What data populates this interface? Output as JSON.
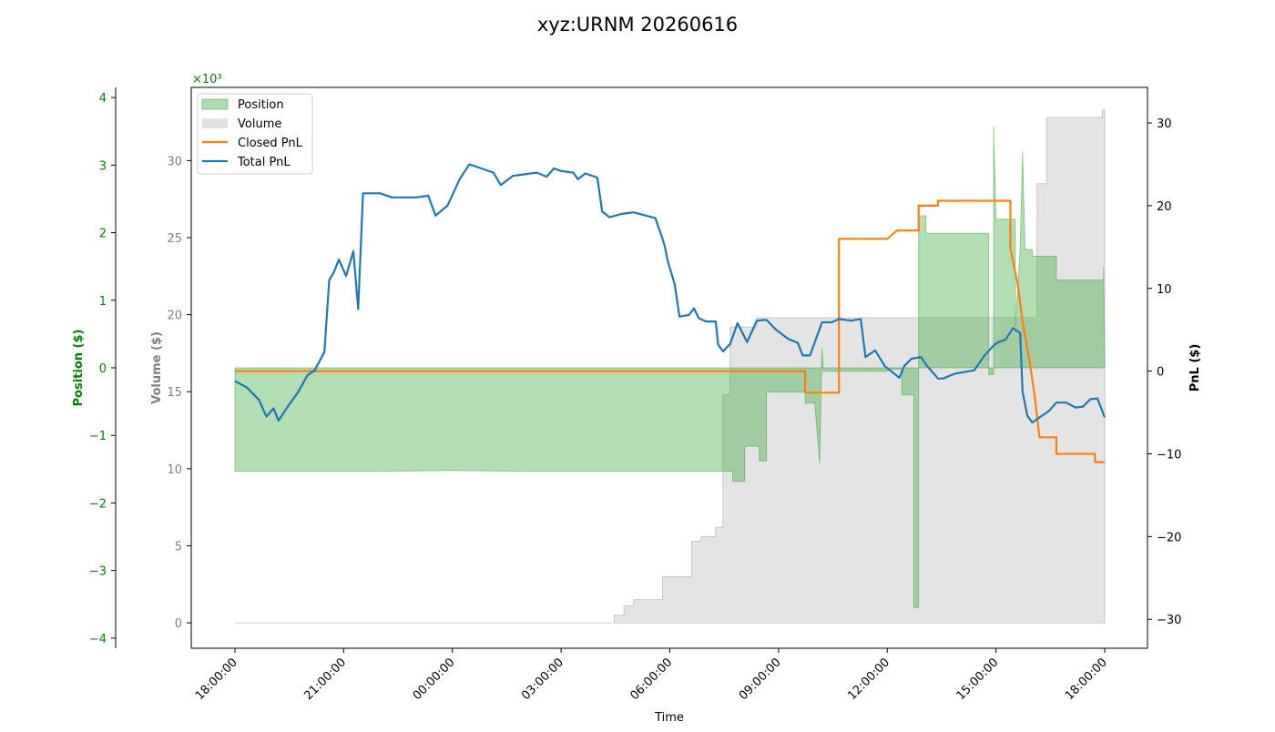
{
  "chart_data": {
    "type": "line",
    "title": "xyz:URNM 20260616",
    "xlabel": "Time",
    "x_ticks": [
      "18:00:00",
      "21:00:00",
      "00:00:00",
      "03:00:00",
      "06:00:00",
      "09:00:00",
      "12:00:00",
      "15:00:00",
      "18:00:00"
    ],
    "position_axis": {
      "label": "Position ($)",
      "multiplier_label": "×10³",
      "ticks": [
        4,
        3,
        2,
        1,
        0,
        -1,
        -2,
        -3,
        -4
      ],
      "tick_labels": [
        "4",
        "3",
        "2",
        "1",
        "0",
        "−1",
        "−2",
        "−3",
        "−4"
      ],
      "ylim": [
        -4.15,
        4.15
      ],
      "color": "#008000"
    },
    "volume_axis": {
      "label": "Volume ($)",
      "ticks": [
        0,
        5,
        10,
        15,
        20,
        25,
        30
      ],
      "tick_labels": [
        "0",
        "5",
        "10",
        "15",
        "20",
        "25",
        "30"
      ],
      "ylim": [
        -1.65,
        34.75
      ],
      "color": "#808080"
    },
    "pnl_axis": {
      "label": "PnL ($)",
      "ticks": [
        30,
        20,
        10,
        0,
        -10,
        -20,
        -30
      ],
      "tick_labels": [
        "30",
        "20",
        "10",
        "0",
        "−10",
        "−20",
        "−30"
      ],
      "ylim": [
        -33.5,
        34.3
      ],
      "color": "#000000"
    },
    "legend": {
      "placement": "top-left",
      "entries": [
        {
          "label": "Position",
          "kind": "area",
          "color": "#2ca02c"
        },
        {
          "label": "Volume",
          "kind": "area",
          "color": "#bfbfbf"
        },
        {
          "label": "Closed PnL",
          "kind": "line",
          "color": "#ff7f0e"
        },
        {
          "label": "Total PnL",
          "kind": "line",
          "color": "#1f77b4"
        }
      ]
    },
    "series": [
      {
        "name": "Position",
        "axis": "position",
        "unit_multiplier": 1000,
        "points": [
          [
            0,
            0
          ],
          [
            0,
            -1.53
          ],
          [
            6,
            -1.53
          ],
          [
            9,
            -1.52
          ],
          [
            12,
            -1.53
          ],
          [
            18,
            -1.53
          ],
          [
            20.6,
            -1.53
          ],
          [
            20.6,
            -1.68
          ],
          [
            21.1,
            -1.68
          ],
          [
            21.1,
            -1.16
          ],
          [
            21.7,
            -1.16
          ],
          [
            21.7,
            -1.38
          ],
          [
            22,
            -1.38
          ],
          [
            22,
            -0.36
          ],
          [
            23.6,
            -0.36
          ],
          [
            23.6,
            -0.52
          ],
          [
            24,
            -0.52
          ],
          [
            24.2,
            -1.41
          ],
          [
            24.3,
            0.3
          ],
          [
            24.35,
            -0.05
          ],
          [
            27,
            -0.05
          ],
          [
            27,
            -0.02
          ],
          [
            27.6,
            -0.02
          ],
          [
            27.6,
            -0.4
          ],
          [
            28.1,
            -0.4
          ],
          [
            28.1,
            -3.55
          ],
          [
            28.3,
            -3.55
          ],
          [
            28.3,
            2.25
          ],
          [
            28.6,
            2.25
          ],
          [
            28.6,
            1.99
          ],
          [
            31.2,
            1.99
          ],
          [
            31.2,
            -0.1
          ],
          [
            31.4,
            -0.1
          ],
          [
            31.4,
            3.58
          ],
          [
            31.5,
            2.2
          ],
          [
            32.3,
            2.2
          ],
          [
            32.3,
            0.6
          ],
          [
            32.5,
            1.75
          ],
          [
            32.6,
            3.2
          ],
          [
            32.7,
            1.75
          ],
          [
            33,
            1.75
          ],
          [
            33,
            1.65
          ],
          [
            34,
            1.65
          ],
          [
            34,
            1.3
          ],
          [
            35.95,
            1.3
          ],
          [
            35.95,
            1.5
          ],
          [
            36,
            0
          ]
        ]
      },
      {
        "name": "Volume",
        "axis": "volume",
        "unit_multiplier": 1000,
        "points": [
          [
            0,
            0
          ],
          [
            15.7,
            0
          ],
          [
            15.7,
            0.5
          ],
          [
            16.1,
            0.5
          ],
          [
            16.1,
            1.1
          ],
          [
            16.5,
            1.1
          ],
          [
            16.5,
            1.5
          ],
          [
            17.7,
            1.5
          ],
          [
            17.7,
            3.0
          ],
          [
            18.9,
            3.0
          ],
          [
            18.9,
            5.3
          ],
          [
            19.3,
            5.3
          ],
          [
            19.3,
            5.6
          ],
          [
            19.9,
            5.6
          ],
          [
            19.9,
            6.2
          ],
          [
            20.2,
            6.2
          ],
          [
            20.2,
            14.8
          ],
          [
            20.5,
            14.8
          ],
          [
            20.5,
            19.2
          ],
          [
            21.6,
            19.2
          ],
          [
            21.6,
            19.8
          ],
          [
            33.2,
            19.8
          ],
          [
            33.2,
            28.5
          ],
          [
            33.6,
            28.5
          ],
          [
            33.6,
            32.8
          ],
          [
            35.9,
            32.8
          ],
          [
            35.9,
            33.3
          ],
          [
            36,
            33.3
          ],
          [
            36,
            0
          ]
        ]
      },
      {
        "name": "Closed PnL",
        "axis": "pnl",
        "points": [
          [
            0,
            0
          ],
          [
            23.6,
            0
          ],
          [
            23.6,
            -2.6
          ],
          [
            25,
            -2.6
          ],
          [
            25,
            16.0
          ],
          [
            27,
            16.0
          ],
          [
            27.4,
            17.0
          ],
          [
            28.3,
            17.0
          ],
          [
            28.3,
            20.0
          ],
          [
            29.1,
            20.0
          ],
          [
            29.1,
            20.6
          ],
          [
            32.1,
            20.6
          ],
          [
            32.1,
            14.8
          ],
          [
            32.4,
            10.5
          ],
          [
            32.6,
            6.0
          ],
          [
            32.9,
            1.0
          ],
          [
            33.1,
            -3.0
          ],
          [
            33.3,
            -8.0
          ],
          [
            34,
            -8.0
          ],
          [
            34,
            -10.0
          ],
          [
            35.6,
            -10.0
          ],
          [
            35.6,
            -11.0
          ],
          [
            36,
            -11.0
          ]
        ]
      },
      {
        "name": "Total PnL",
        "axis": "pnl",
        "points": [
          [
            0,
            -1.2
          ],
          [
            0.5,
            -2.0
          ],
          [
            1,
            -3.5
          ],
          [
            1.3,
            -5.5
          ],
          [
            1.6,
            -4.5
          ],
          [
            1.8,
            -6.0
          ],
          [
            2.2,
            -4.2
          ],
          [
            2.6,
            -2.6
          ],
          [
            3,
            -0.5
          ],
          [
            3.3,
            0.1
          ],
          [
            3.7,
            2.3
          ],
          [
            3.9,
            11.0
          ],
          [
            4.1,
            12.0
          ],
          [
            4.3,
            13.5
          ],
          [
            4.6,
            11.5
          ],
          [
            4.9,
            14.5
          ],
          [
            5.1,
            7.5
          ],
          [
            5.3,
            21.5
          ],
          [
            6,
            21.5
          ],
          [
            6.5,
            21.0
          ],
          [
            7,
            21.0
          ],
          [
            7.5,
            21.0
          ],
          [
            8,
            21.2
          ],
          [
            8.3,
            18.8
          ],
          [
            8.8,
            20.0
          ],
          [
            9.3,
            23.2
          ],
          [
            9.7,
            25.0
          ],
          [
            10.2,
            24.5
          ],
          [
            10.7,
            24.0
          ],
          [
            11,
            22.5
          ],
          [
            11.5,
            23.6
          ],
          [
            12,
            23.8
          ],
          [
            12.5,
            24.0
          ],
          [
            12.9,
            23.5
          ],
          [
            13.2,
            24.5
          ],
          [
            13.5,
            24.2
          ],
          [
            14,
            24.0
          ],
          [
            14.2,
            23.2
          ],
          [
            14.5,
            23.9
          ],
          [
            15,
            23.4
          ],
          [
            15.2,
            19.3
          ],
          [
            15.5,
            18.6
          ],
          [
            16,
            19.0
          ],
          [
            16.5,
            19.2
          ],
          [
            17.4,
            18.5
          ],
          [
            17.7,
            16.0
          ],
          [
            17.8,
            15.0
          ],
          [
            17.9,
            13.5
          ],
          [
            18.2,
            10.5
          ],
          [
            18.4,
            6.6
          ],
          [
            18.8,
            6.8
          ],
          [
            19,
            7.6
          ],
          [
            19.2,
            6.4
          ],
          [
            19.5,
            6.0
          ],
          [
            19.9,
            6.0
          ],
          [
            20,
            3.2
          ],
          [
            20.2,
            2.4
          ],
          [
            20.5,
            3.3
          ],
          [
            20.8,
            5.8
          ],
          [
            21.2,
            3.5
          ],
          [
            21.6,
            6.1
          ],
          [
            22,
            6.2
          ],
          [
            22.4,
            5.0
          ],
          [
            22.9,
            3.9
          ],
          [
            23.3,
            3.4
          ],
          [
            23.5,
            1.9
          ],
          [
            23.8,
            1.9
          ],
          [
            24.3,
            5.9
          ],
          [
            24.7,
            5.9
          ],
          [
            25,
            6.3
          ],
          [
            25.5,
            6.1
          ],
          [
            25.9,
            6.3
          ],
          [
            26.1,
            1.7
          ],
          [
            26.5,
            2.5
          ],
          [
            26.9,
            0.6
          ],
          [
            27.5,
            -0.8
          ],
          [
            27.7,
            0.6
          ],
          [
            28,
            1.5
          ],
          [
            28.4,
            1.7
          ],
          [
            28.6,
            0.8
          ],
          [
            29.1,
            -0.9
          ],
          [
            29.3,
            -0.9
          ],
          [
            29.8,
            -0.3
          ],
          [
            30.6,
            0.1
          ],
          [
            31,
            1.8
          ],
          [
            31.4,
            3.1
          ],
          [
            31.6,
            3.5
          ],
          [
            31.9,
            3.8
          ],
          [
            32.2,
            5.2
          ],
          [
            32.5,
            4.6
          ],
          [
            32.6,
            -2.5
          ],
          [
            32.8,
            -5.4
          ],
          [
            33,
            -6.2
          ],
          [
            33.3,
            -5.6
          ],
          [
            33.7,
            -4.8
          ],
          [
            34,
            -3.8
          ],
          [
            34.4,
            -3.8
          ],
          [
            34.8,
            -4.4
          ],
          [
            35.1,
            -4.3
          ],
          [
            35.4,
            -3.4
          ],
          [
            35.7,
            -3.3
          ],
          [
            36,
            -5.6
          ]
        ]
      }
    ]
  }
}
